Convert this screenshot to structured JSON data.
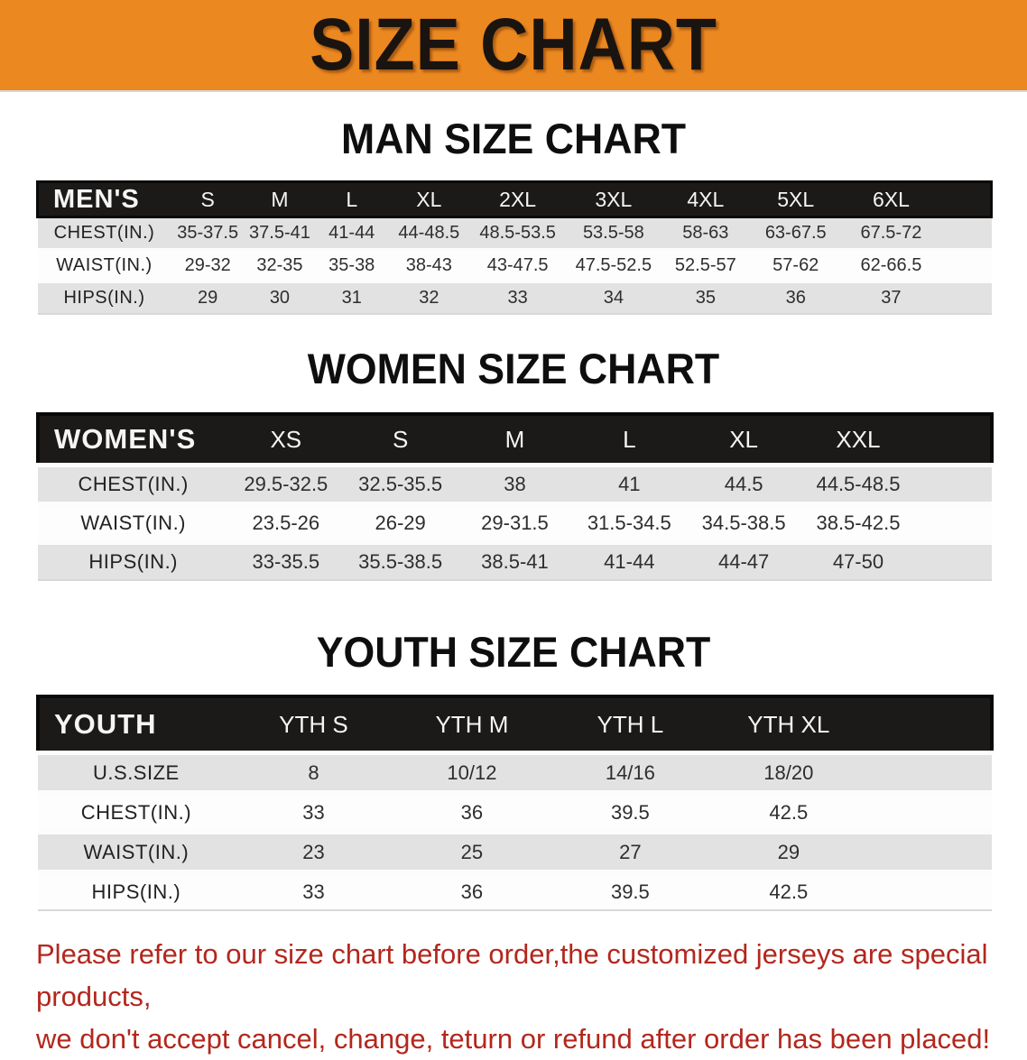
{
  "banner": {
    "title": "SIZE CHART"
  },
  "sections": [
    {
      "id": "mens",
      "heading": "MAN SIZE CHART",
      "label": "MEN'S",
      "columns": [
        "S",
        "M",
        "L",
        "XL",
        "2XL",
        "3XL",
        "4XL",
        "5XL",
        "6XL"
      ],
      "rows": [
        {
          "label": "CHEST(IN.)",
          "values": [
            "35-37.5",
            "37.5-41",
            "41-44",
            "44-48.5",
            "48.5-53.5",
            "53.5-58",
            "58-63",
            "63-67.5",
            "67.5-72"
          ]
        },
        {
          "label": "WAIST(IN.)",
          "values": [
            "29-32",
            "32-35",
            "35-38",
            "38-43",
            "43-47.5",
            "47.5-52.5",
            "52.5-57",
            "57-62",
            "62-66.5"
          ]
        },
        {
          "label": "HIPS(IN.)",
          "values": [
            "29",
            "30",
            "31",
            "32",
            "33",
            "34",
            "35",
            "36",
            "37"
          ]
        }
      ]
    },
    {
      "id": "womens",
      "heading": "WOMEN SIZE CHART",
      "label": "WOMEN'S",
      "columns": [
        "XS",
        "S",
        "M",
        "L",
        "XL",
        "XXL"
      ],
      "rows": [
        {
          "label": "CHEST(IN.)",
          "values": [
            "29.5-32.5",
            "32.5-35.5",
            "38",
            "41",
            "44.5",
            "44.5-48.5"
          ]
        },
        {
          "label": "WAIST(IN.)",
          "values": [
            "23.5-26",
            "26-29",
            "29-31.5",
            "31.5-34.5",
            "34.5-38.5",
            "38.5-42.5"
          ]
        },
        {
          "label": "HIPS(IN.)",
          "values": [
            "33-35.5",
            "35.5-38.5",
            "38.5-41",
            "41-44",
            "44-47",
            "47-50"
          ]
        }
      ]
    },
    {
      "id": "youth",
      "heading": "YOUTH SIZE CHART",
      "label": "YOUTH",
      "columns": [
        "YTH S",
        "YTH M",
        "YTH L",
        "YTH XL"
      ],
      "rows": [
        {
          "label": "U.S.SIZE",
          "values": [
            "8",
            "10/12",
            "14/16",
            "18/20"
          ]
        },
        {
          "label": "CHEST(IN.)",
          "values": [
            "33",
            "36",
            "39.5",
            "42.5"
          ]
        },
        {
          "label": "WAIST(IN.)",
          "values": [
            "23",
            "25",
            "27",
            "29"
          ]
        },
        {
          "label": "HIPS(IN.)",
          "values": [
            "33",
            "36",
            "39.5",
            "42.5"
          ]
        }
      ]
    }
  ],
  "disclaimer": {
    "line1": "Please refer to our size chart before order,the customized jerseys are special products,",
    "line2": "we don't accept cancel, change, teturn or refund after order has been placed!"
  },
  "colors": {
    "banner_bg": "#EC8820",
    "banner_text": "#1A1410",
    "header_bar_bg": "#1C1919",
    "header_bar_border": "#0A0909",
    "row_gray": "#E2E2E2",
    "row_white": "#FDFDFD",
    "heading_text": "#0E0E0E",
    "disclaimer_red": "#B3271D"
  }
}
